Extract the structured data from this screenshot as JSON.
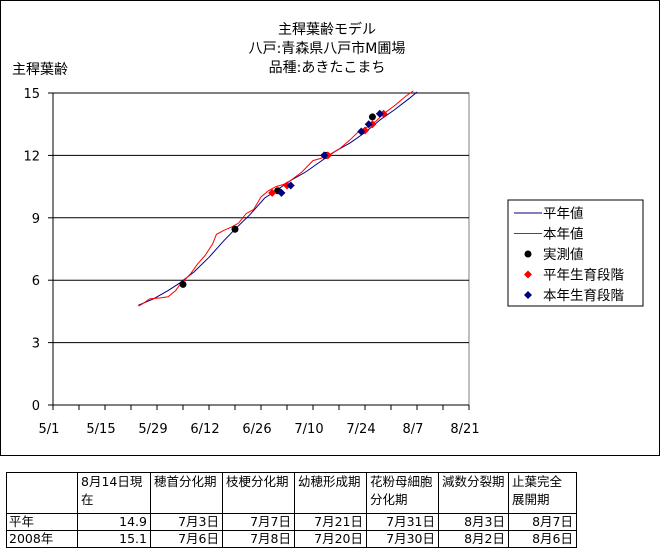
{
  "chart_data": {
    "type": "line",
    "title_lines": [
      "主稈葉齢モデル",
      "八戸:青森県八戸市M圃場",
      "品種:あきたこまち"
    ],
    "ylabel": "主稈葉齢",
    "xlabel": "",
    "ylim": [
      0,
      15
    ],
    "yticks": [
      0,
      3,
      6,
      9,
      12,
      15
    ],
    "xlim": [
      0,
      112
    ],
    "xticks": [
      {
        "label": "5/1",
        "day": 0
      },
      {
        "label": "5/15",
        "day": 14
      },
      {
        "label": "5/29",
        "day": 28
      },
      {
        "label": "6/12",
        "day": 42
      },
      {
        "label": "6/26",
        "day": 56
      },
      {
        "label": "7/10",
        "day": 70
      },
      {
        "label": "7/24",
        "day": 84
      },
      {
        "label": "8/7",
        "day": 98
      },
      {
        "label": "8/21",
        "day": 112
      }
    ],
    "grid": "horizontal",
    "legend_position": "right",
    "series": [
      {
        "name": "平年値",
        "kind": "line",
        "color": "#000080",
        "points": [
          [
            23,
            4.8
          ],
          [
            27,
            5.1
          ],
          [
            31,
            5.5
          ],
          [
            34,
            5.85
          ],
          [
            38,
            6.4
          ],
          [
            42,
            7.1
          ],
          [
            46,
            7.9
          ],
          [
            49,
            8.45
          ],
          [
            53,
            9.15
          ],
          [
            57,
            9.95
          ],
          [
            60,
            10.3
          ],
          [
            64,
            10.8
          ],
          [
            68,
            11.2
          ],
          [
            72,
            11.7
          ],
          [
            76,
            12.2
          ],
          [
            80,
            12.6
          ],
          [
            84,
            13.1
          ],
          [
            88,
            13.7
          ],
          [
            92,
            14.2
          ],
          [
            96,
            14.75
          ],
          [
            98,
            15.05
          ]
        ]
      },
      {
        "name": "本年値",
        "kind": "line",
        "color": "#ff0000",
        "points": [
          [
            23,
            4.75
          ],
          [
            24,
            4.85
          ],
          [
            26,
            5.1
          ],
          [
            29,
            5.15
          ],
          [
            31,
            5.2
          ],
          [
            33,
            5.5
          ],
          [
            34,
            5.75
          ],
          [
            37,
            6.3
          ],
          [
            39,
            6.8
          ],
          [
            41,
            7.2
          ],
          [
            43,
            7.75
          ],
          [
            44,
            8.2
          ],
          [
            46,
            8.4
          ],
          [
            48,
            8.55
          ],
          [
            50,
            8.75
          ],
          [
            52,
            9.2
          ],
          [
            54,
            9.4
          ],
          [
            56,
            10.0
          ],
          [
            58,
            10.3
          ],
          [
            60,
            10.5
          ],
          [
            62,
            10.6
          ],
          [
            64,
            10.8
          ],
          [
            67,
            11.2
          ],
          [
            70,
            11.75
          ],
          [
            72,
            11.85
          ],
          [
            74,
            12.0
          ],
          [
            77,
            12.3
          ],
          [
            80,
            12.75
          ],
          [
            82,
            13.1
          ],
          [
            85,
            13.4
          ],
          [
            87,
            13.65
          ],
          [
            89,
            14.0
          ],
          [
            92,
            14.4
          ],
          [
            95,
            14.85
          ],
          [
            97,
            15.1
          ]
        ]
      },
      {
        "name": "実測値",
        "kind": "marker",
        "marker": "circle",
        "color": "#000000",
        "points": [
          [
            35,
            5.8
          ],
          [
            49,
            8.45
          ],
          [
            60.5,
            10.3
          ],
          [
            73.5,
            12.0
          ],
          [
            86,
            13.85
          ]
        ]
      },
      {
        "name": "平年生育段階",
        "kind": "marker",
        "marker": "diamond",
        "color": "#ff0000",
        "points": [
          [
            59,
            10.2
          ],
          [
            63,
            10.55
          ],
          [
            74,
            12.0
          ],
          [
            84,
            13.2
          ],
          [
            86,
            13.5
          ],
          [
            89,
            14.0
          ]
        ]
      },
      {
        "name": "本年生育段階",
        "kind": "marker",
        "marker": "diamond",
        "color": "#000080",
        "points": [
          [
            61.5,
            10.2
          ],
          [
            64,
            10.55
          ],
          [
            73,
            12.0
          ],
          [
            83,
            13.15
          ],
          [
            85,
            13.5
          ],
          [
            88,
            14.0
          ]
        ]
      }
    ]
  },
  "table": {
    "headers": [
      "",
      "8月14日現在",
      "穂首分化期",
      "枝梗分化期",
      "幼穂形成期",
      "花粉母細胞分化期",
      "減数分裂期",
      "止葉完全展開期"
    ],
    "rows": [
      [
        "平年",
        "14.9",
        "7月3日",
        "7月7日",
        "7月21日",
        "7月31日",
        "8月3日",
        "8月7日"
      ],
      [
        "2008年",
        "15.1",
        "7月6日",
        "7月8日",
        "7月20日",
        "7月30日",
        "8月2日",
        "8月6日"
      ]
    ]
  }
}
